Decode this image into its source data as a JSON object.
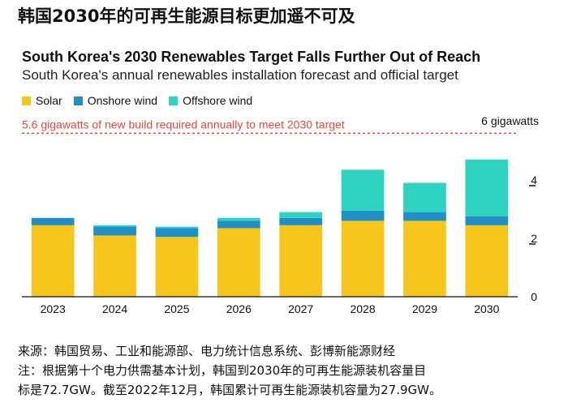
{
  "header": {
    "cn_title": "韩国2030年的可再生能源目标更加遥不可及",
    "en_title": "South Korea's 2030 Renewables Target Falls Further Out of Reach",
    "en_subtitle": "South Korea's annual renewables installation forecast and official target"
  },
  "footer": {
    "source": "来源：韩国贸易、工业和能源部、电力统计信息系统、彭博新能源财经",
    "note1": "注：根据第十个电力供需基本计划，韩国到2030年的可再生能源装机容量目",
    "note2": "标是72.7GW。截至2022年12月，韩国累计可再生能源装机容量为27.9GW。"
  },
  "colors": {
    "solar": "#f6c61c",
    "onshore": "#1f8fc6",
    "offshore": "#2ed3bf",
    "target": "#e8483a"
  },
  "chart_data": {
    "type": "bar",
    "stacked": true,
    "title": "South Korea's 2030 Renewables Target Falls Further Out of Reach",
    "categories": [
      "2023",
      "2024",
      "2025",
      "2026",
      "2027",
      "2028",
      "2029",
      "2030"
    ],
    "series": [
      {
        "name": "Solar",
        "values": [
          2.45,
          2.1,
          2.05,
          2.35,
          2.45,
          2.6,
          2.6,
          2.45
        ]
      },
      {
        "name": "Onshore wind",
        "values": [
          0.25,
          0.3,
          0.3,
          0.25,
          0.25,
          0.35,
          0.3,
          0.3
        ]
      },
      {
        "name": "Offshore wind",
        "values": [
          0,
          0.05,
          0.05,
          0.1,
          0.2,
          1.4,
          1.0,
          1.95
        ]
      }
    ],
    "ylim": [
      0,
      6
    ],
    "yticks": [
      0,
      2,
      4
    ],
    "yunit_label": "6 gigawatts",
    "target_value": 5.6,
    "target_label": "5.6 gigawatts of new build required annually to meet 2030 target"
  }
}
